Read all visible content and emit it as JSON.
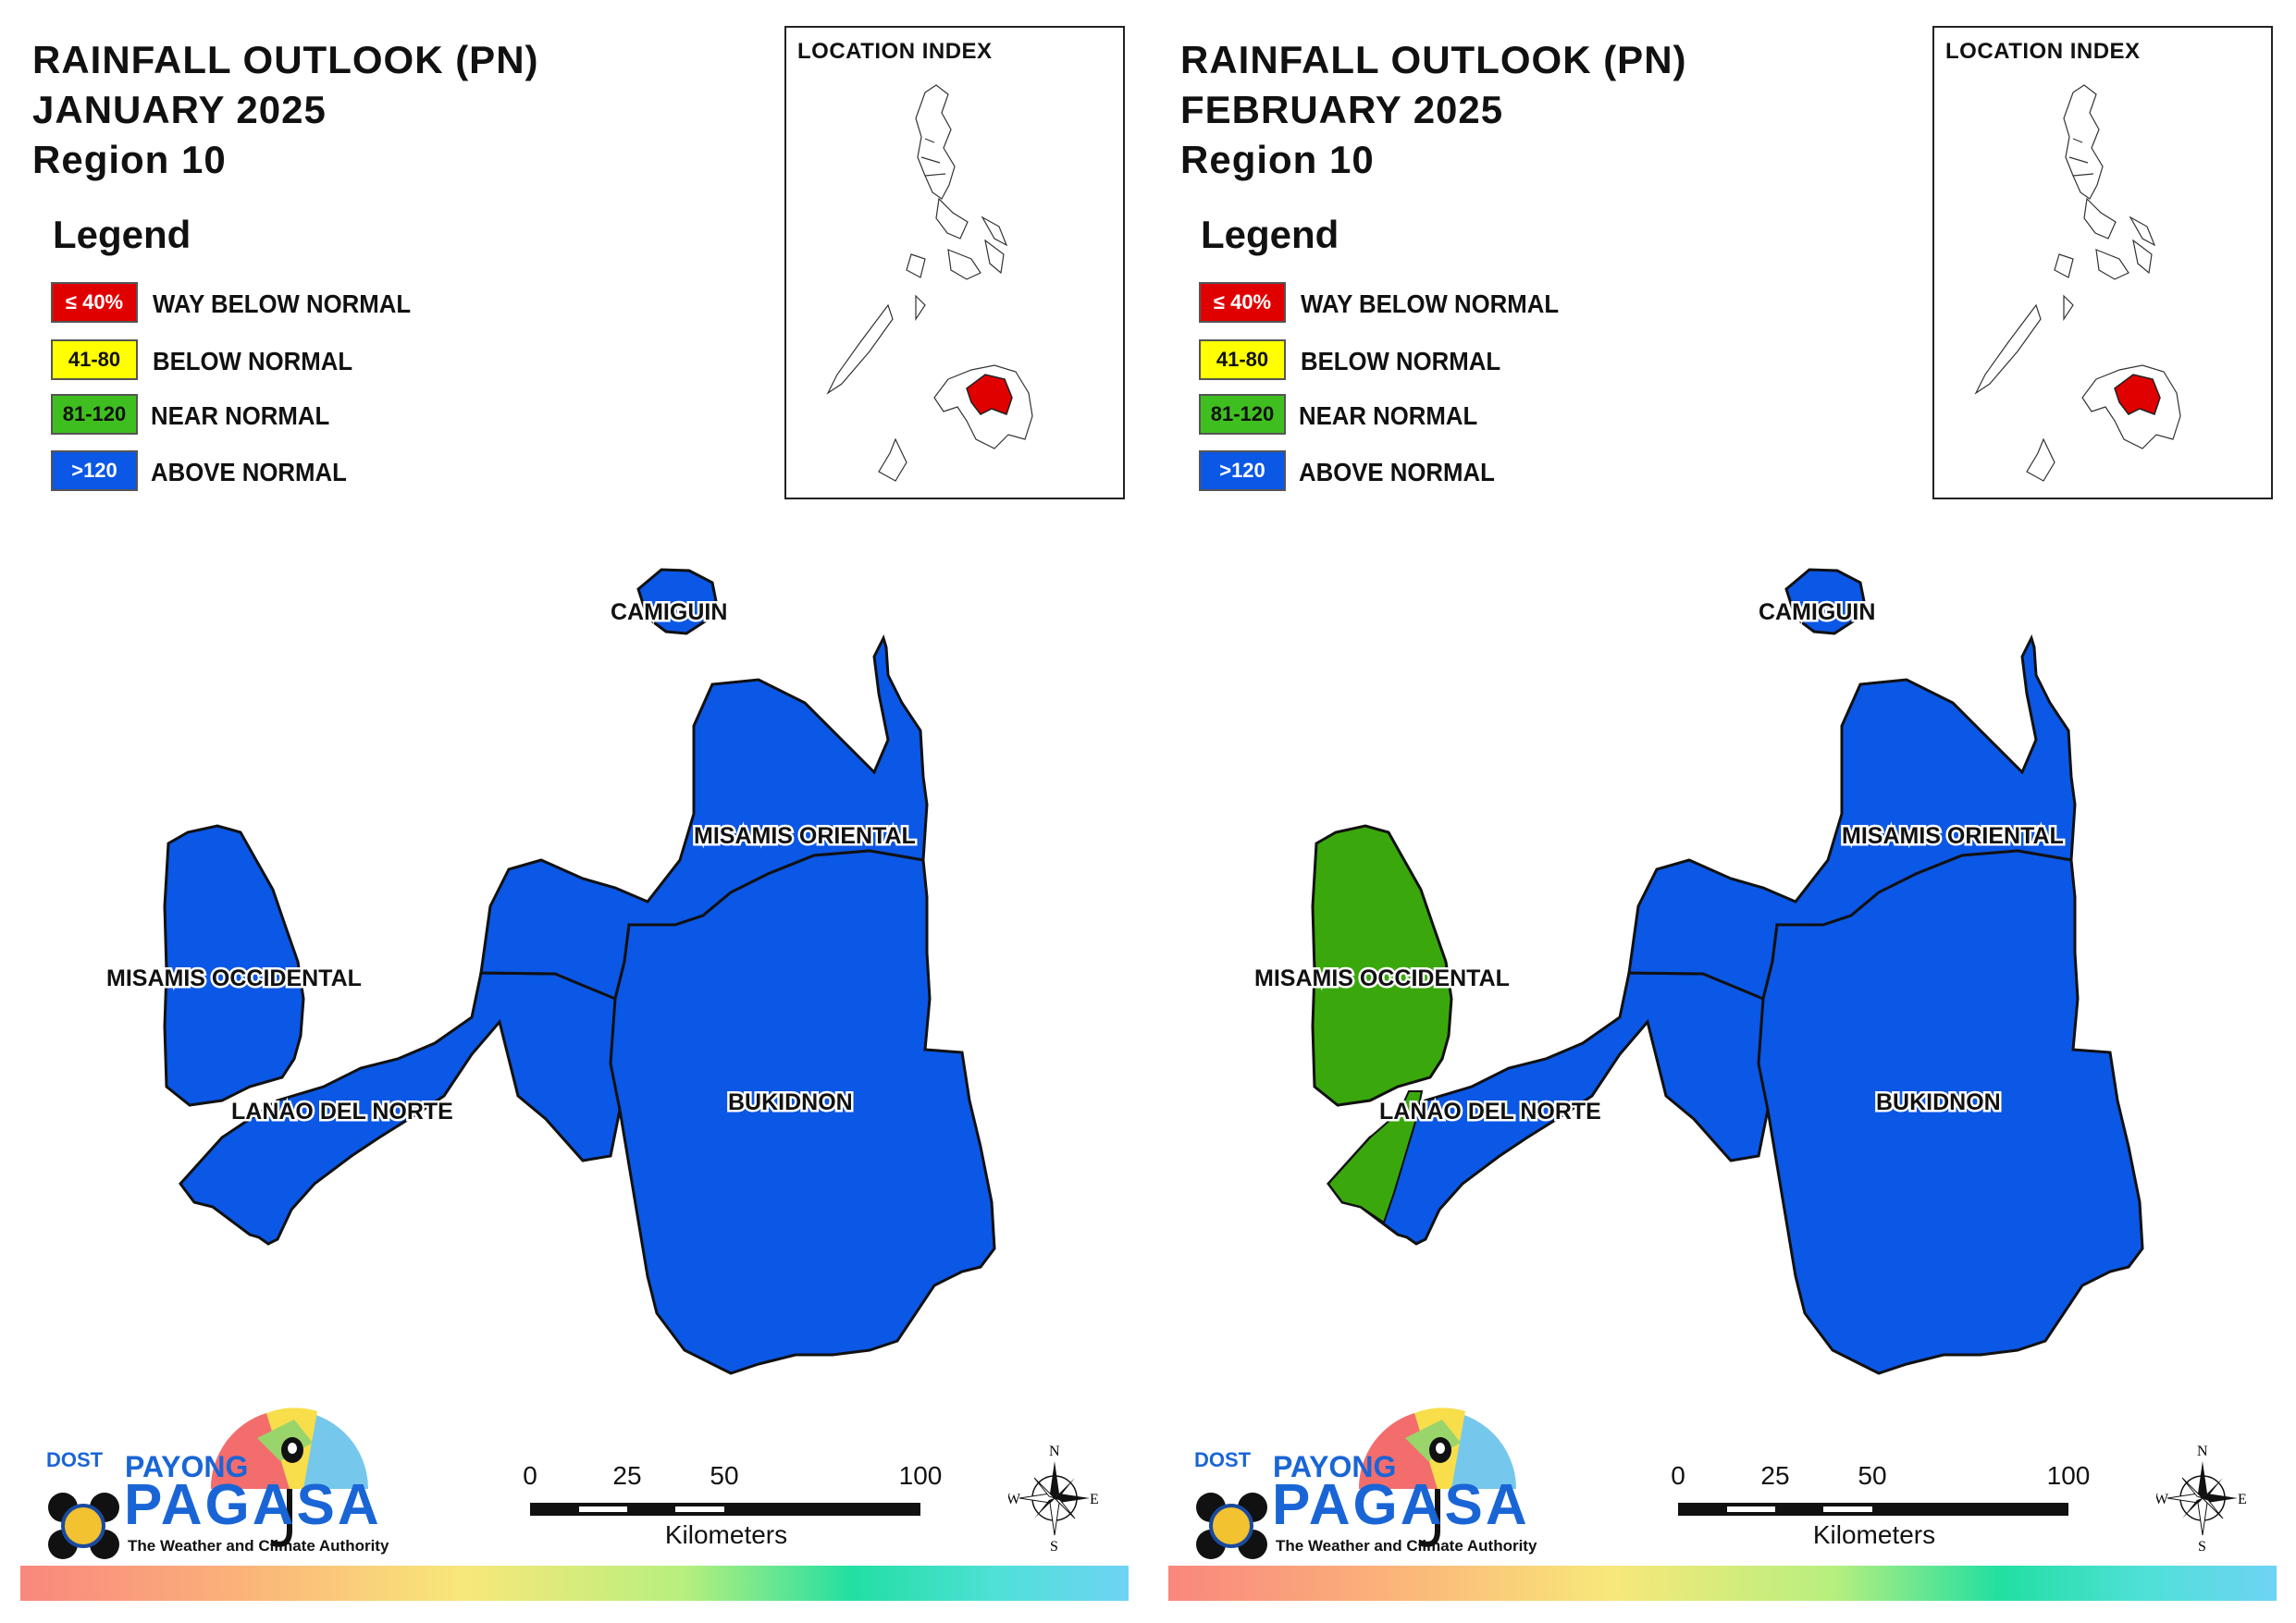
{
  "colors": {
    "way_below": "#e00000",
    "below": "#ffff00",
    "near": "#3aa80c",
    "above": "#0b57e6",
    "outline": "#111111"
  },
  "panels": [
    {
      "title_line1": "RAINFALL OUTLOOK (PN)",
      "title_line2": "JANUARY 2025",
      "title_line3": "Region 10",
      "legend_title": "Legend",
      "legend": [
        {
          "range": "≤ 40%",
          "label": "WAY BELOW NORMAL",
          "color": "#e00000",
          "text_color": "#ffffff"
        },
        {
          "range": "41-80",
          "label": "BELOW NORMAL",
          "color": "#ffff00",
          "text_color": "#111111"
        },
        {
          "range": "81-120",
          "label": "NEAR NORMAL",
          "color": "#3fbf1f",
          "text_color": "#111111"
        },
        {
          "range": ">120",
          "label": "ABOVE NORMAL",
          "color": "#0b57e6",
          "text_color": "#ffffff"
        }
      ],
      "location_index_title": "LOCATION INDEX",
      "provinces": {
        "camiguin": {
          "name": "CAMIGUIN",
          "category": "ABOVE NORMAL"
        },
        "misamis_oriental": {
          "name": "MISAMIS ORIENTAL",
          "category": "ABOVE NORMAL"
        },
        "misamis_occidental": {
          "name": "MISAMIS OCCIDENTAL",
          "category": "ABOVE NORMAL"
        },
        "lanao_del_norte": {
          "name": "LANAO DEL NORTE",
          "category": "ABOVE NORMAL"
        },
        "bukidnon": {
          "name": "BUKIDNON",
          "category": "ABOVE NORMAL"
        }
      },
      "logo": {
        "dost": "DOST",
        "payong": "PAYONG",
        "pagasa": "PAGASA",
        "tagline": "The Weather and Climate Authority"
      },
      "scale": {
        "ticks": [
          "0",
          "25",
          "50",
          "100"
        ],
        "unit": "Kilometers"
      },
      "compass": {
        "n": "N",
        "s": "S",
        "e": "E",
        "w": "W"
      }
    },
    {
      "title_line1": "RAINFALL OUTLOOK (PN)",
      "title_line2": "FEBRUARY 2025",
      "title_line3": "Region 10",
      "legend_title": "Legend",
      "legend": [
        {
          "range": "≤ 40%",
          "label": "WAY BELOW NORMAL",
          "color": "#e00000",
          "text_color": "#ffffff"
        },
        {
          "range": "41-80",
          "label": "BELOW NORMAL",
          "color": "#ffff00",
          "text_color": "#111111"
        },
        {
          "range": "81-120",
          "label": "NEAR NORMAL",
          "color": "#3fbf1f",
          "text_color": "#111111"
        },
        {
          "range": ">120",
          "label": "ABOVE NORMAL",
          "color": "#0b57e6",
          "text_color": "#ffffff"
        }
      ],
      "location_index_title": "LOCATION INDEX",
      "provinces": {
        "camiguin": {
          "name": "CAMIGUIN",
          "category": "ABOVE NORMAL"
        },
        "misamis_oriental": {
          "name": "MISAMIS ORIENTAL",
          "category": "ABOVE NORMAL"
        },
        "misamis_occidental": {
          "name": "MISAMIS OCCIDENTAL",
          "category": "NEAR NORMAL"
        },
        "lanao_del_norte": {
          "name": "LANAO DEL NORTE",
          "category": "ABOVE NORMAL"
        },
        "bukidnon": {
          "name": "BUKIDNON",
          "category": "ABOVE NORMAL"
        }
      },
      "logo": {
        "dost": "DOST",
        "payong": "PAYONG",
        "pagasa": "PAGASA",
        "tagline": "The Weather and Climate Authority"
      },
      "scale": {
        "ticks": [
          "0",
          "25",
          "50",
          "100"
        ],
        "unit": "Kilometers"
      },
      "compass": {
        "n": "N",
        "s": "S",
        "e": "E",
        "w": "W"
      }
    }
  ]
}
